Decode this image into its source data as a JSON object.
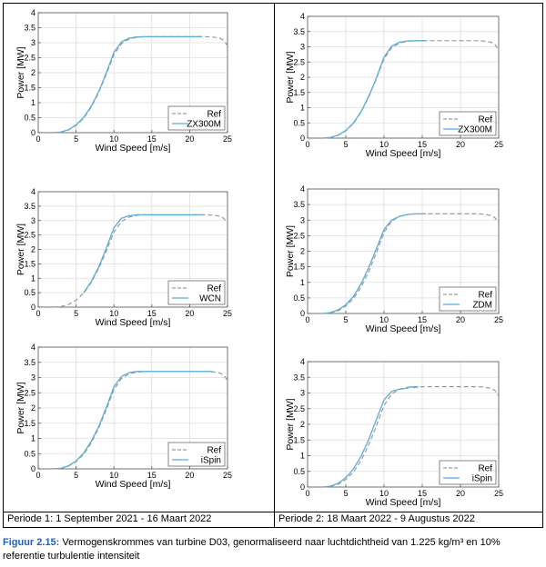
{
  "periods": {
    "left": "Periode 1: 1 September 2021 - 16 Maart 2022",
    "right": "Periode 2: 18 Maart 2022 - 9 Augustus 2022"
  },
  "caption": {
    "label": "Figuur 2.15:",
    "text": " Vermogenskrommes van turbine D03, genormaliseerd naar luchtdichtheid van 1.225 kg/m³ en 10% referentie turbulentie intensiteit"
  },
  "colors": {
    "ref": "#9a9a9a",
    "model": "#5aaed8",
    "grid": "#dedede",
    "axis": "#555555"
  },
  "chart_data": [
    {
      "type": "line",
      "xlabel": "Wind Speed [m/s]",
      "ylabel": "Power [MW]",
      "xlim": [
        0,
        25
      ],
      "ylim": [
        0,
        4
      ],
      "grid": true,
      "legend": "bottom-right",
      "xticks": [
        0,
        5,
        10,
        15,
        20,
        25
      ],
      "yticks": [
        0,
        0.5,
        1,
        1.5,
        2,
        2.5,
        3,
        3.5,
        4
      ],
      "series": [
        {
          "name": "Ref",
          "style": "dashed",
          "x": [
            2,
            3,
            4,
            5,
            6,
            7,
            8,
            9,
            10,
            11,
            12,
            13,
            14,
            15,
            16,
            18,
            20,
            22,
            23,
            24,
            24.5,
            25
          ],
          "y": [
            0,
            0.02,
            0.09,
            0.24,
            0.48,
            0.85,
            1.35,
            1.95,
            2.6,
            2.97,
            3.12,
            3.18,
            3.2,
            3.2,
            3.2,
            3.2,
            3.2,
            3.2,
            3.19,
            3.15,
            3.08,
            2.9
          ]
        },
        {
          "name": "ZX300M",
          "style": "solid",
          "x": [
            2,
            3,
            4,
            5,
            6,
            7,
            8,
            9,
            10,
            11,
            12,
            13,
            14,
            15,
            16,
            18,
            20,
            21.5
          ],
          "y": [
            0,
            0.02,
            0.1,
            0.26,
            0.51,
            0.88,
            1.38,
            2.0,
            2.68,
            3.03,
            3.15,
            3.19,
            3.2,
            3.2,
            3.2,
            3.2,
            3.2,
            3.2
          ]
        }
      ]
    },
    {
      "type": "line",
      "xlabel": "Wind Speed [m/s]",
      "ylabel": "Power [MW]",
      "xlim": [
        0,
        25
      ],
      "ylim": [
        0,
        4
      ],
      "grid": true,
      "legend": "bottom-right",
      "xticks": [
        0,
        5,
        10,
        15,
        20,
        25
      ],
      "yticks": [
        0,
        0.5,
        1,
        1.5,
        2,
        2.5,
        3,
        3.5,
        4
      ],
      "series": [
        {
          "name": "Ref",
          "style": "dashed",
          "x": [
            2,
            3,
            4,
            5,
            6,
            7,
            8,
            9,
            10,
            11,
            12,
            13,
            14,
            15,
            16,
            18,
            20,
            22,
            23,
            24,
            24.5,
            25
          ],
          "y": [
            0,
            0.02,
            0.09,
            0.24,
            0.48,
            0.85,
            1.35,
            1.95,
            2.6,
            2.97,
            3.12,
            3.18,
            3.2,
            3.2,
            3.2,
            3.2,
            3.2,
            3.2,
            3.19,
            3.15,
            3.08,
            2.9
          ]
        },
        {
          "name": "ZX300M",
          "style": "solid",
          "x": [
            2,
            3,
            4,
            5,
            6,
            7,
            8,
            9,
            10,
            11,
            12,
            13,
            14,
            15,
            15.5
          ],
          "y": [
            0,
            0.02,
            0.1,
            0.25,
            0.5,
            0.87,
            1.37,
            1.98,
            2.66,
            3.02,
            3.15,
            3.19,
            3.2,
            3.2,
            3.2
          ]
        }
      ]
    },
    {
      "type": "line",
      "xlabel": "Wind Speed [m/s]",
      "ylabel": "Power [MW]",
      "xlim": [
        0,
        25
      ],
      "ylim": [
        0,
        4
      ],
      "grid": true,
      "legend": "bottom-right",
      "xticks": [
        0,
        5,
        10,
        15,
        20,
        25
      ],
      "yticks": [
        0,
        0.5,
        1,
        1.5,
        2,
        2.5,
        3,
        3.5,
        4
      ],
      "series": [
        {
          "name": "Ref",
          "style": "dashed",
          "x": [
            2,
            3,
            4,
            5,
            6,
            7,
            8,
            9,
            10,
            11,
            12,
            13,
            14,
            15,
            16,
            18,
            20,
            22,
            23,
            24,
            24.5,
            25
          ],
          "y": [
            0,
            0.02,
            0.09,
            0.24,
            0.48,
            0.85,
            1.35,
            1.95,
            2.6,
            2.97,
            3.12,
            3.18,
            3.2,
            3.2,
            3.2,
            3.2,
            3.2,
            3.2,
            3.19,
            3.15,
            3.08,
            2.9
          ]
        },
        {
          "name": "WCN",
          "style": "solid",
          "x": [
            6,
            7,
            8,
            9,
            10,
            11,
            12,
            13,
            14,
            15,
            16,
            18,
            20,
            21.5
          ],
          "y": [
            0.5,
            0.88,
            1.4,
            2.05,
            2.75,
            3.08,
            3.17,
            3.2,
            3.2,
            3.2,
            3.2,
            3.2,
            3.2,
            3.2
          ]
        }
      ]
    },
    {
      "type": "line",
      "xlabel": "Wind Speed [m/s]",
      "ylabel": "Power [MW]",
      "xlim": [
        0,
        25
      ],
      "ylim": [
        0,
        4
      ],
      "grid": true,
      "legend": "bottom-right",
      "xticks": [
        0,
        5,
        10,
        15,
        20,
        25
      ],
      "yticks": [
        0,
        0.5,
        1,
        1.5,
        2,
        2.5,
        3,
        3.5,
        4
      ],
      "series": [
        {
          "name": "Ref",
          "style": "dashed",
          "x": [
            2,
            3,
            4,
            5,
            6,
            7,
            8,
            9,
            10,
            11,
            12,
            13,
            14,
            15,
            16,
            18,
            20,
            22,
            23,
            24,
            24.5,
            25
          ],
          "y": [
            0,
            0.02,
            0.09,
            0.24,
            0.48,
            0.85,
            1.35,
            1.95,
            2.6,
            2.97,
            3.12,
            3.18,
            3.2,
            3.2,
            3.2,
            3.2,
            3.2,
            3.2,
            3.19,
            3.15,
            3.08,
            2.9
          ]
        },
        {
          "name": "ZDM",
          "style": "solid",
          "x": [
            2,
            3,
            4,
            5,
            6,
            7,
            8,
            9,
            10,
            11,
            12,
            13,
            14,
            15,
            15.5
          ],
          "y": [
            0,
            0.03,
            0.12,
            0.28,
            0.55,
            0.95,
            1.48,
            2.08,
            2.7,
            3.0,
            3.12,
            3.18,
            3.2,
            3.2,
            3.2
          ]
        }
      ]
    },
    {
      "type": "line",
      "xlabel": "Wind Speed [m/s]",
      "ylabel": "Power [MW]",
      "xlim": [
        0,
        25
      ],
      "ylim": [
        0,
        4
      ],
      "grid": true,
      "legend": "bottom-right",
      "xticks": [
        0,
        5,
        10,
        15,
        20,
        25
      ],
      "yticks": [
        0,
        0.5,
        1,
        1.5,
        2,
        2.5,
        3,
        3.5,
        4
      ],
      "series": [
        {
          "name": "Ref",
          "style": "dashed",
          "x": [
            2,
            3,
            4,
            5,
            6,
            7,
            8,
            9,
            10,
            11,
            12,
            13,
            14,
            15,
            16,
            18,
            20,
            22,
            23,
            24,
            24.5,
            25
          ],
          "y": [
            0,
            0.02,
            0.09,
            0.24,
            0.48,
            0.85,
            1.35,
            1.95,
            2.6,
            2.97,
            3.12,
            3.18,
            3.2,
            3.2,
            3.2,
            3.2,
            3.2,
            3.2,
            3.19,
            3.15,
            3.08,
            2.9
          ]
        },
        {
          "name": "iSpin",
          "style": "solid",
          "x": [
            2,
            3,
            4,
            5,
            6,
            7,
            8,
            9,
            10,
            11,
            12,
            13,
            14,
            15,
            16,
            18,
            20,
            22,
            23
          ],
          "y": [
            0,
            0.02,
            0.1,
            0.26,
            0.52,
            0.9,
            1.4,
            2.02,
            2.7,
            3.04,
            3.16,
            3.2,
            3.2,
            3.2,
            3.2,
            3.2,
            3.2,
            3.2,
            3.2
          ]
        }
      ]
    },
    {
      "type": "line",
      "xlabel": "Wind Speed [m/s]",
      "ylabel": "Power [MW]",
      "xlim": [
        0,
        25
      ],
      "ylim": [
        0,
        4
      ],
      "grid": true,
      "legend": "bottom-right",
      "xticks": [
        0,
        5,
        10,
        15,
        20,
        25
      ],
      "yticks": [
        0,
        0.5,
        1,
        1.5,
        2,
        2.5,
        3,
        3.5,
        4
      ],
      "series": [
        {
          "name": "Ref",
          "style": "dashed",
          "x": [
            2,
            3,
            4,
            5,
            6,
            7,
            8,
            9,
            10,
            11,
            12,
            13,
            14,
            15,
            16,
            18,
            20,
            22,
            23,
            24,
            24.5,
            25
          ],
          "y": [
            0,
            0.02,
            0.09,
            0.24,
            0.48,
            0.85,
            1.35,
            1.95,
            2.6,
            2.97,
            3.12,
            3.18,
            3.2,
            3.2,
            3.2,
            3.2,
            3.2,
            3.2,
            3.19,
            3.15,
            3.08,
            2.9
          ]
        },
        {
          "name": "iSpin",
          "style": "solid",
          "x": [
            2,
            3,
            4,
            5,
            6,
            7,
            8,
            9,
            10,
            11,
            12,
            13,
            13.5,
            14,
            14.5
          ],
          "y": [
            0,
            0.03,
            0.12,
            0.3,
            0.58,
            0.98,
            1.52,
            2.15,
            2.78,
            3.05,
            3.12,
            3.15,
            3.2,
            3.17,
            3.2
          ]
        }
      ]
    }
  ]
}
